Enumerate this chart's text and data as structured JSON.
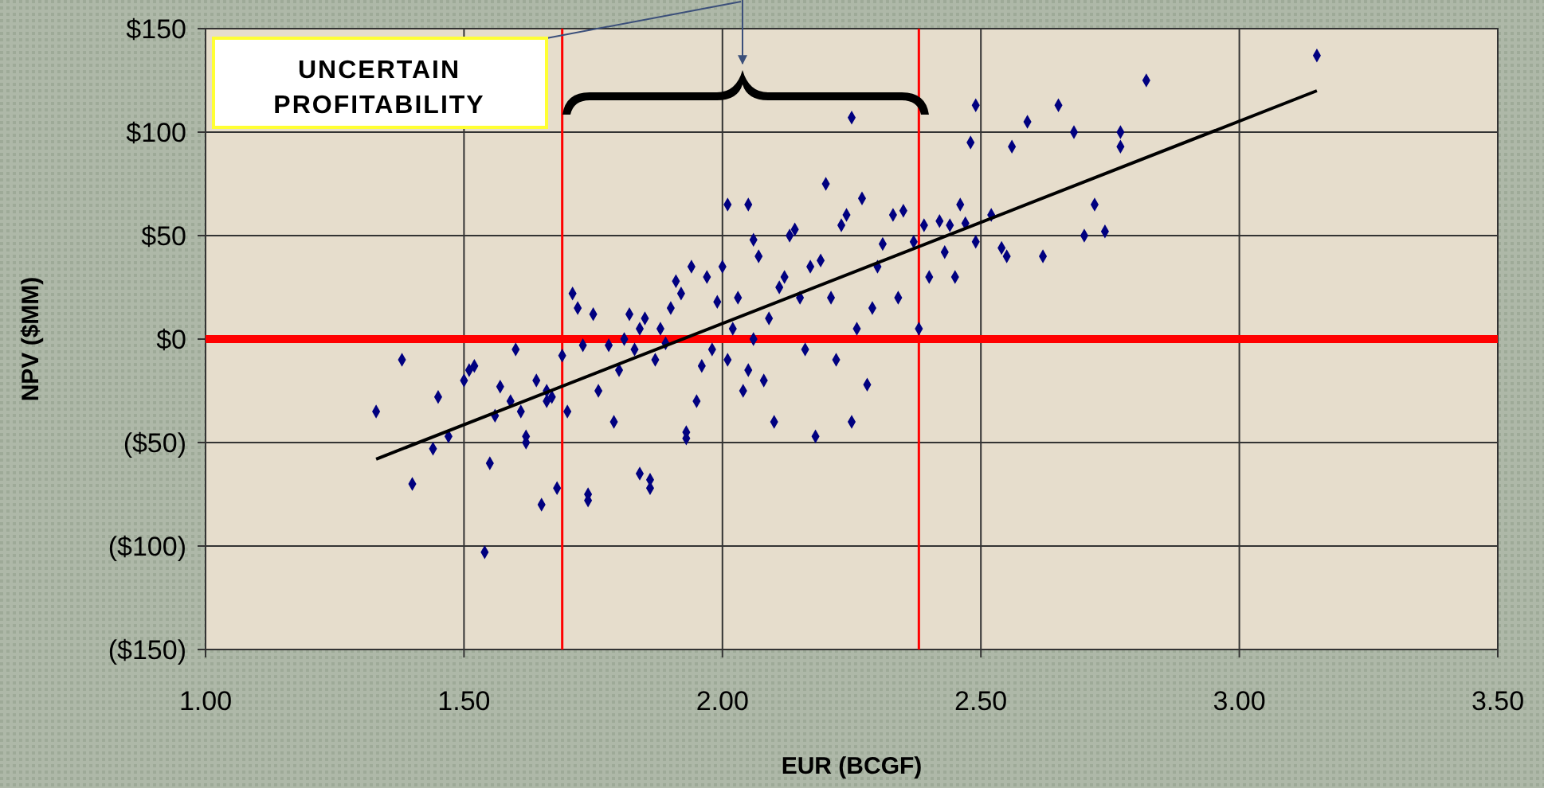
{
  "chart_data": {
    "type": "scatter",
    "xlabel": "EUR (BCGF)",
    "ylabel": "NPV ($MM)",
    "xlim": [
      1.0,
      3.5
    ],
    "xticks": [
      {
        "value": 1,
        "label": "1.00"
      },
      {
        "value": 1.5,
        "label": "1.50"
      },
      {
        "value": 2,
        "label": "2.00"
      },
      {
        "value": 2.5,
        "label": "2.50"
      },
      {
        "value": 3,
        "label": "3.00"
      },
      {
        "value": 3.5,
        "label": "3.50"
      }
    ],
    "ylim": [
      -150,
      150
    ],
    "yticks": [
      {
        "value": -150,
        "label": "($150)"
      },
      {
        "value": -100,
        "label": "($100)"
      },
      {
        "value": -50,
        "label": "($50)"
      },
      {
        "value": 0,
        "label": "$0"
      },
      {
        "value": 50,
        "label": "$50"
      },
      {
        "value": 100,
        "label": "$100"
      },
      {
        "value": 150,
        "label": "$150"
      }
    ],
    "grid": true,
    "annotations": [
      "UNCERTAIN PROFITABILITY"
    ],
    "ref_lines": [
      {
        "axis": "y",
        "value": 0,
        "color": "#ff0000"
      },
      {
        "axis": "x",
        "value": 1.69,
        "color": "#ff0000"
      },
      {
        "axis": "x",
        "value": 2.38,
        "color": "#ff0000"
      }
    ],
    "series": [
      {
        "type": "scatter",
        "marker": "diamond",
        "color": "#000080",
        "x": [
          1.33,
          1.38,
          1.4,
          1.44,
          1.45,
          1.47,
          1.5,
          1.51,
          1.52,
          1.54,
          1.55,
          1.56,
          1.57,
          1.59,
          1.6,
          1.61,
          1.62,
          1.62,
          1.64,
          1.65,
          1.66,
          1.66,
          1.67,
          1.68,
          1.69,
          1.7,
          1.71,
          1.72,
          1.73,
          1.74,
          1.74,
          1.75,
          1.76,
          1.78,
          1.79,
          1.8,
          1.81,
          1.82,
          1.83,
          1.84,
          1.84,
          1.85,
          1.86,
          1.86,
          1.87,
          1.88,
          1.89,
          1.9,
          1.91,
          1.92,
          1.93,
          1.93,
          1.94,
          1.95,
          1.96,
          1.97,
          1.98,
          1.99,
          2.0,
          2.01,
          2.01,
          2.02,
          2.03,
          2.04,
          2.05,
          2.05,
          2.06,
          2.06,
          2.07,
          2.08,
          2.09,
          2.1,
          2.11,
          2.12,
          2.13,
          2.14,
          2.15,
          2.16,
          2.17,
          2.18,
          2.19,
          2.2,
          2.21,
          2.22,
          2.23,
          2.24,
          2.25,
          2.25,
          2.26,
          2.27,
          2.28,
          2.29,
          2.3,
          2.31,
          2.33,
          2.34,
          2.35,
          2.37,
          2.38,
          2.39,
          2.4,
          2.42,
          2.43,
          2.44,
          2.45,
          2.46,
          2.47,
          2.48,
          2.49,
          2.49,
          2.52,
          2.54,
          2.55,
          2.56,
          2.59,
          2.62,
          2.65,
          2.68,
          2.7,
          2.72,
          2.74,
          2.77,
          2.77,
          2.82,
          3.15
        ],
        "values": [
          -35,
          -10,
          -70,
          -53,
          -28,
          -47,
          -20,
          -15,
          -13,
          -103,
          -60,
          -37,
          -23,
          -30,
          -5,
          -35,
          -47,
          -50,
          -20,
          -80,
          -25,
          -30,
          -28,
          -72,
          -8,
          -35,
          22,
          15,
          -3,
          -75,
          -78,
          12,
          -25,
          -3,
          -40,
          -15,
          0,
          12,
          -5,
          -65,
          5,
          10,
          -72,
          -68,
          -10,
          5,
          -2,
          15,
          28,
          22,
          -48,
          -45,
          35,
          -30,
          -13,
          30,
          -5,
          18,
          35,
          65,
          -10,
          5,
          20,
          -25,
          65,
          -15,
          0,
          48,
          40,
          -20,
          10,
          -40,
          25,
          30,
          50,
          53,
          20,
          -5,
          35,
          -47,
          38,
          75,
          20,
          -10,
          55,
          60,
          -40,
          107,
          5,
          68,
          -22,
          15,
          35,
          46,
          60,
          20,
          62,
          47,
          5,
          55,
          30,
          57,
          42,
          55,
          30,
          65,
          56,
          95,
          113,
          47,
          60,
          44,
          40,
          93,
          105,
          40,
          113,
          100,
          50,
          65,
          52,
          100,
          93,
          125,
          137
        ]
      },
      {
        "type": "line",
        "marker": "none",
        "color": "#000000",
        "x": [
          1.33,
          3.15
        ],
        "values": [
          -58,
          120
        ]
      }
    ]
  }
}
